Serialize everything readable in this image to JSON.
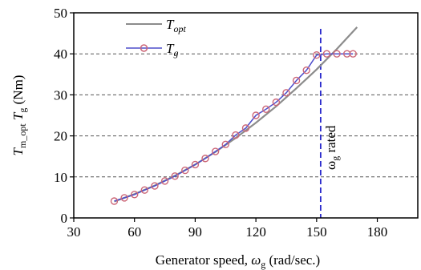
{
  "chart_data": {
    "type": "line",
    "xlabel": "Generator speed, ω_g (rad/sec.)",
    "ylabel": "T_m_opt  T_g (Nm)",
    "xlim": [
      30,
      200
    ],
    "ylim": [
      0,
      50
    ],
    "xticks": [
      30,
      60,
      90,
      120,
      150,
      180
    ],
    "yticks": [
      0,
      10,
      20,
      30,
      40,
      50
    ],
    "grid": "horizontal-dashed",
    "legend_position": "top-left",
    "series": [
      {
        "name": "T_opt",
        "color": "#8c8c8c",
        "marker": "none",
        "x": [
          50,
          60,
          70,
          80,
          90,
          100,
          110,
          120,
          130,
          140,
          150,
          160,
          170
        ],
        "y": [
          4.0,
          5.8,
          7.9,
          10.3,
          13.0,
          16.1,
          19.5,
          23.2,
          27.2,
          31.6,
          36.2,
          41.2,
          46.5
        ]
      },
      {
        "name": "T_g",
        "color": "#4d4dcc",
        "marker_color": "#cc6677",
        "marker": "circle",
        "x": [
          50,
          55,
          60,
          65,
          70,
          75,
          80,
          85,
          90,
          95,
          100,
          105,
          110,
          115,
          120,
          125,
          130,
          135,
          140,
          145,
          150,
          155,
          160,
          165,
          168
        ],
        "y": [
          4.1,
          4.9,
          5.7,
          6.8,
          7.8,
          9.0,
          10.2,
          11.6,
          13.0,
          14.5,
          16.2,
          17.9,
          20.2,
          21.9,
          25.0,
          26.5,
          28.2,
          30.5,
          33.5,
          36.0,
          39.7,
          40.0,
          40.0,
          40.0,
          40.0
        ]
      }
    ],
    "annotations": [
      {
        "type": "vline",
        "x": 152,
        "color": "#2a2acc",
        "label": "ω_g rated"
      }
    ],
    "legend": {
      "entries": [
        {
          "series": 0,
          "base": "T",
          "sub": "opt"
        },
        {
          "series": 1,
          "base": "T",
          "sub": "g"
        }
      ]
    },
    "labels": {
      "xlabel_text": "Generator speed, ",
      "xlabel_sym": "ω",
      "xlabel_sub": "g",
      "xlabel_unit": " (rad/sec.)",
      "ylabel_a": "T",
      "ylabel_a_sub": "m_opt",
      "ylabel_b": " T",
      "ylabel_b_sub": "g",
      "ylabel_unit": " (Nm)",
      "annot_sym": "ω",
      "annot_sub": "g",
      "annot_text": " rated"
    }
  }
}
